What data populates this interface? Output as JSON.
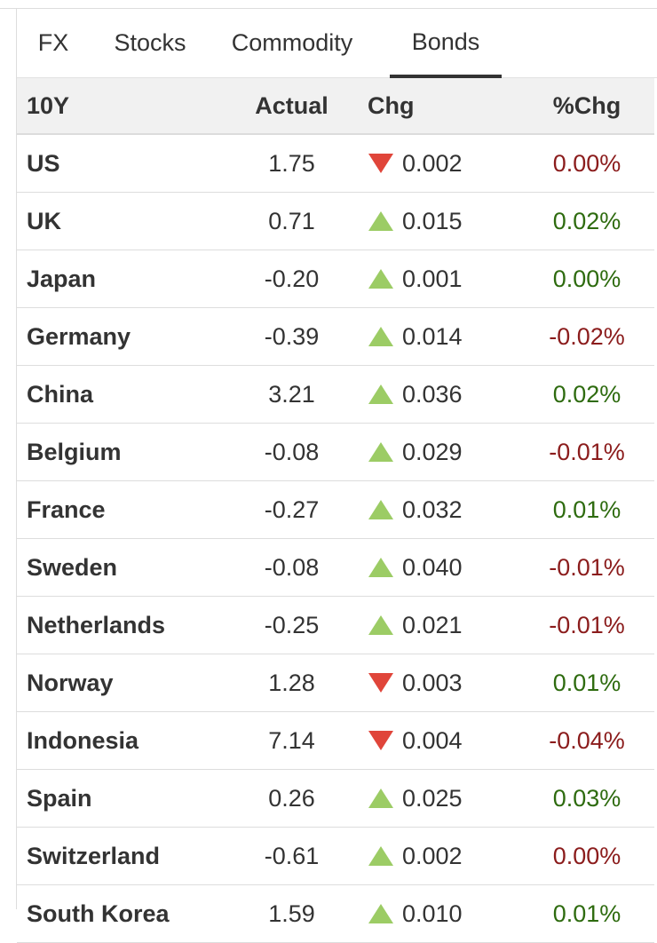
{
  "tabs": [
    {
      "label": "FX",
      "active": false
    },
    {
      "label": "Stocks",
      "active": false
    },
    {
      "label": "Commodity",
      "active": false
    },
    {
      "label": "Bonds",
      "active": true
    }
  ],
  "table": {
    "headers": {
      "country": "10Y",
      "actual": "Actual",
      "chg": "Chg",
      "pct": "%Chg"
    },
    "rows": [
      {
        "country": "US",
        "actual": "1.75",
        "direction": "down",
        "chg": "0.002",
        "pct": "0.00%",
        "pct_color": "red"
      },
      {
        "country": "UK",
        "actual": "0.71",
        "direction": "up",
        "chg": "0.015",
        "pct": "0.02%",
        "pct_color": "green"
      },
      {
        "country": "Japan",
        "actual": "-0.20",
        "direction": "up",
        "chg": "0.001",
        "pct": "0.00%",
        "pct_color": "green"
      },
      {
        "country": "Germany",
        "actual": "-0.39",
        "direction": "up",
        "chg": "0.014",
        "pct": "-0.02%",
        "pct_color": "red"
      },
      {
        "country": "China",
        "actual": "3.21",
        "direction": "up",
        "chg": "0.036",
        "pct": "0.02%",
        "pct_color": "green"
      },
      {
        "country": "Belgium",
        "actual": "-0.08",
        "direction": "up",
        "chg": "0.029",
        "pct": "-0.01%",
        "pct_color": "red"
      },
      {
        "country": "France",
        "actual": "-0.27",
        "direction": "up",
        "chg": "0.032",
        "pct": "0.01%",
        "pct_color": "green"
      },
      {
        "country": "Sweden",
        "actual": "-0.08",
        "direction": "up",
        "chg": "0.040",
        "pct": "-0.01%",
        "pct_color": "red"
      },
      {
        "country": "Netherlands",
        "actual": "-0.25",
        "direction": "up",
        "chg": "0.021",
        "pct": "-0.01%",
        "pct_color": "red"
      },
      {
        "country": "Norway",
        "actual": "1.28",
        "direction": "down",
        "chg": "0.003",
        "pct": "0.01%",
        "pct_color": "green"
      },
      {
        "country": "Indonesia",
        "actual": "7.14",
        "direction": "down",
        "chg": "0.004",
        "pct": "-0.04%",
        "pct_color": "red"
      },
      {
        "country": "Spain",
        "actual": "0.26",
        "direction": "up",
        "chg": "0.025",
        "pct": "0.03%",
        "pct_color": "green"
      },
      {
        "country": "Switzerland",
        "actual": "-0.61",
        "direction": "up",
        "chg": "0.002",
        "pct": "0.00%",
        "pct_color": "red"
      },
      {
        "country": "South Korea",
        "actual": "1.59",
        "direction": "up",
        "chg": "0.010",
        "pct": "0.01%",
        "pct_color": "green"
      }
    ]
  },
  "colors": {
    "up_arrow": "#9ccc65",
    "down_arrow": "#e0453a",
    "pct_red": "#8b1c1c",
    "pct_green": "#2e6b0f",
    "header_bg": "#f1f1f1"
  }
}
